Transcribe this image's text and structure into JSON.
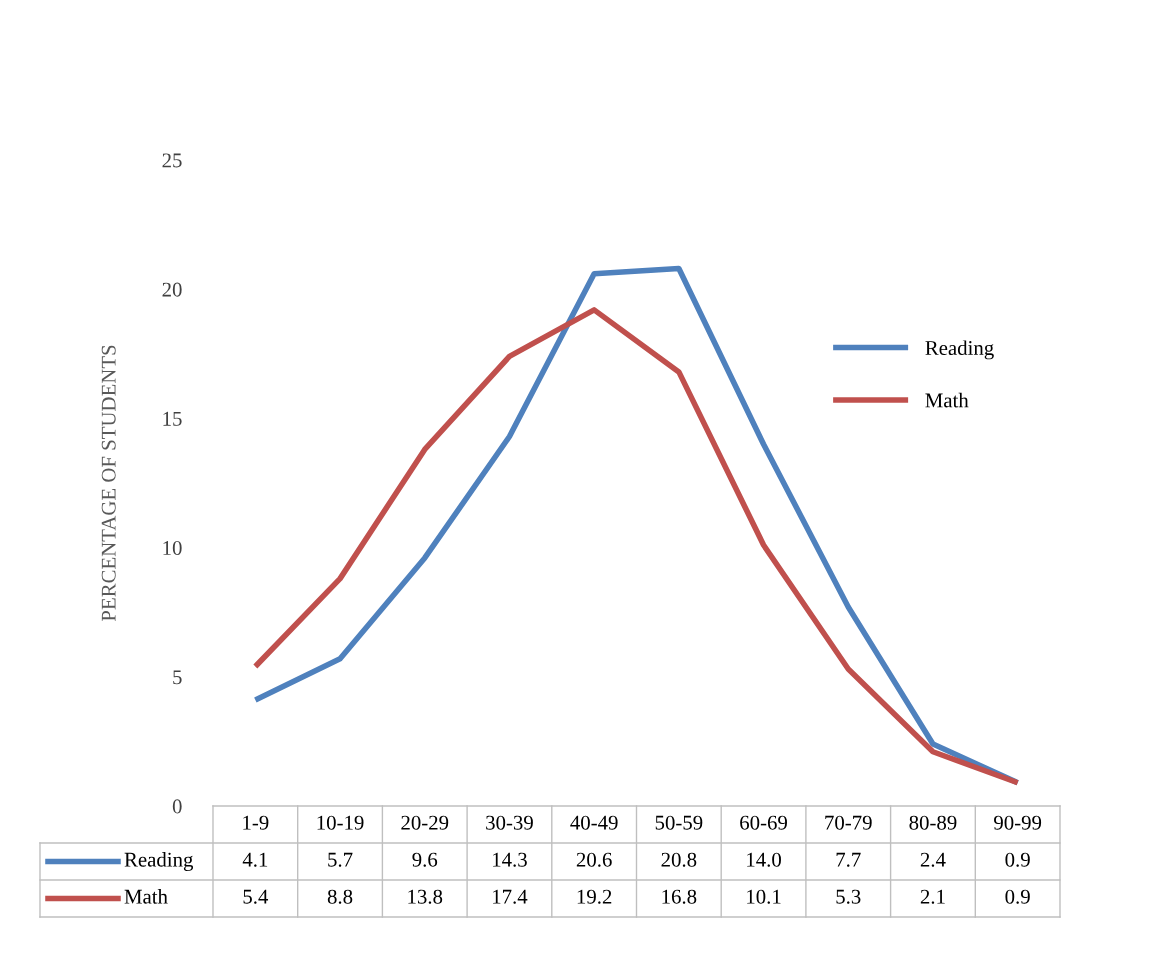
{
  "chart_data": {
    "type": "line",
    "ylabel": "PERCENTAGE OF STUDENTS",
    "categories": [
      "1-9",
      "10-19",
      "20-29",
      "30-39",
      "40-49",
      "50-59",
      "60-69",
      "70-79",
      "80-89",
      "90-99"
    ],
    "series": [
      {
        "name": "Reading",
        "color": "#4f81bd",
        "values": [
          4.1,
          5.7,
          9.6,
          14.3,
          20.6,
          20.8,
          14.0,
          7.7,
          2.4,
          0.9
        ],
        "value_labels": [
          "4.1",
          "5.7",
          "9.6",
          "14.3",
          "20.6",
          "20.8",
          "14.0",
          "7.7",
          "2.4",
          "0.9"
        ]
      },
      {
        "name": "Math",
        "color": "#c0504d",
        "values": [
          5.4,
          8.8,
          13.8,
          17.4,
          19.2,
          16.8,
          10.1,
          5.3,
          2.1,
          0.9
        ],
        "value_labels": [
          "5.4",
          "8.8",
          "13.8",
          "17.4",
          "19.2",
          "16.8",
          "10.1",
          "5.3",
          "2.1",
          "0.9"
        ]
      }
    ],
    "ylim": [
      0,
      25
    ],
    "yticks": [
      0,
      5,
      10,
      15,
      20,
      25
    ],
    "grid": false,
    "legend": "right",
    "marker": "none",
    "line_style": "solid"
  }
}
